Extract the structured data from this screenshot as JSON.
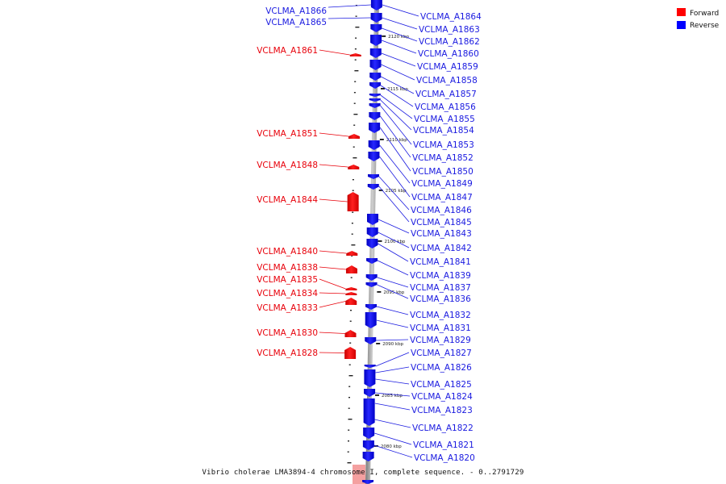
{
  "caption": "Vibrio cholerae LMA3894-4 chromosome I, complete sequence. - 0..2791729",
  "legend": {
    "forward": {
      "label": "Forward",
      "color": "#ff0000"
    },
    "reverse": {
      "label": "Reverse",
      "color": "#0000ff"
    }
  },
  "scale": [
    {
      "label": "2120 kbp"
    },
    {
      "label": "2115 kbp"
    },
    {
      "label": "2110 kbp"
    },
    {
      "label": "2105 kbp"
    },
    {
      "label": "2100 kbp"
    },
    {
      "label": "2095 kbp"
    },
    {
      "label": "2090 kbp"
    },
    {
      "label": "2085 kbp"
    },
    {
      "label": "2080 kbp"
    }
  ],
  "forward_genes": [
    "VCLMA_A1861",
    "VCLMA_A1851",
    "VCLMA_A1848",
    "VCLMA_A1844",
    "VCLMA_A1840",
    "VCLMA_A1838",
    "VCLMA_A1835",
    "VCLMA_A1834",
    "VCLMA_A1833",
    "VCLMA_A1830",
    "VCLMA_A1828"
  ],
  "reverse_genes": [
    "VCLMA_A1866",
    "VCLMA_A1865",
    "VCLMA_A1864",
    "VCLMA_A1863",
    "VCLMA_A1862",
    "VCLMA_A1860",
    "VCLMA_A1859",
    "VCLMA_A1858",
    "VCLMA_A1857",
    "VCLMA_A1856",
    "VCLMA_A1855",
    "VCLMA_A1854",
    "VCLMA_A1853",
    "VCLMA_A1852",
    "VCLMA_A1850",
    "VCLMA_A1849",
    "VCLMA_A1847",
    "VCLMA_A1846",
    "VCLMA_A1845",
    "VCLMA_A1843",
    "VCLMA_A1842",
    "VCLMA_A1841",
    "VCLMA_A1839",
    "VCLMA_A1837",
    "VCLMA_A1836",
    "VCLMA_A1832",
    "VCLMA_A1831",
    "VCLMA_A1829",
    "VCLMA_A1827",
    "VCLMA_A1826",
    "VCLMA_A1825",
    "VCLMA_A1824",
    "VCLMA_A1823",
    "VCLMA_A1822",
    "VCLMA_A1821",
    "VCLMA_A1820"
  ]
}
